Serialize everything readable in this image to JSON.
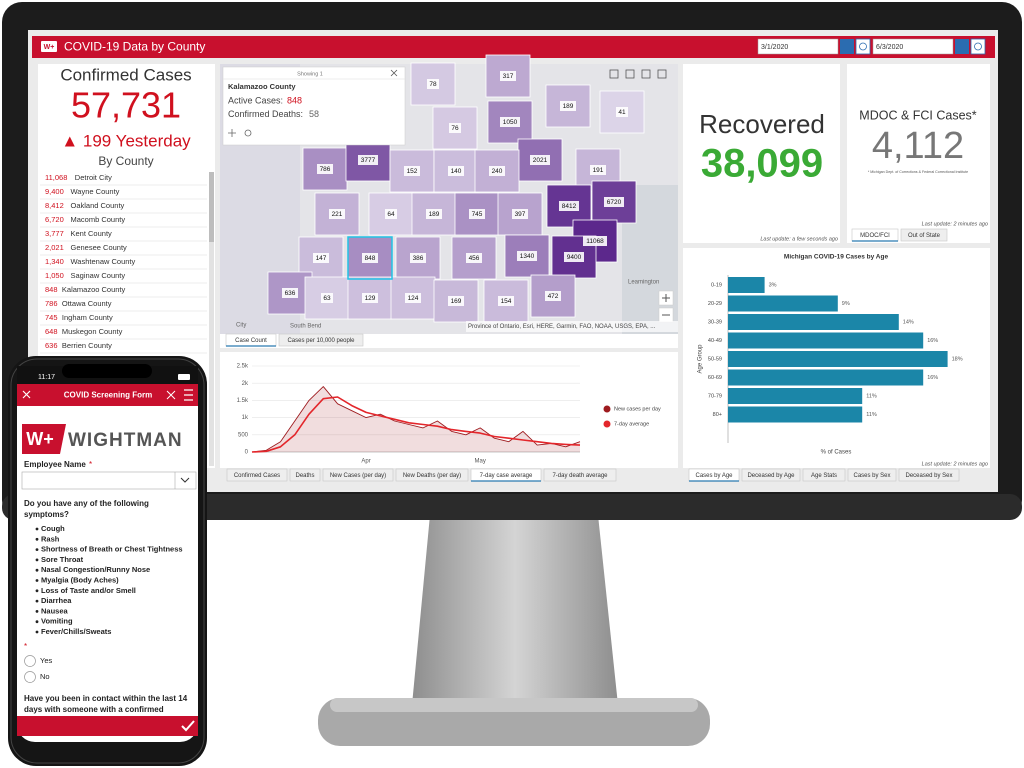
{
  "header": {
    "title": "COVID-19 Data by County",
    "start_date": "3/1/2020",
    "end_date": "6/3/2020"
  },
  "confirmed": {
    "title": "Confirmed Cases",
    "total": "57,731",
    "yesterday": "▲ 199 Yesterday",
    "subtitle": "By County",
    "counties": [
      {
        "count": "11,068",
        "name": "Detroit City"
      },
      {
        "count": "9,400",
        "name": "Wayne County"
      },
      {
        "count": "8,412",
        "name": "Oakland County"
      },
      {
        "count": "6,720",
        "name": "Macomb County"
      },
      {
        "count": "3,777",
        "name": "Kent County"
      },
      {
        "count": "2,021",
        "name": "Genesee County"
      },
      {
        "count": "1,340",
        "name": "Washtenaw County"
      },
      {
        "count": "1,050",
        "name": "Saginaw County"
      },
      {
        "count": "848",
        "name": "Kalamazoo County"
      },
      {
        "count": "786",
        "name": "Ottawa County"
      },
      {
        "count": "745",
        "name": "Ingham County"
      },
      {
        "count": "648",
        "name": "Muskegon County"
      },
      {
        "count": "636",
        "name": "Berrien County"
      }
    ]
  },
  "map": {
    "popup": {
      "showing": "Showing 1",
      "county": "Kalamazoo County",
      "active_label": "Active Cases:",
      "active": "848",
      "deaths_label": "Confirmed Deaths:",
      "deaths": "58"
    },
    "counties": [
      78,
      317,
      189,
      41,
      76,
      1050,
      2021,
      191,
      786,
      3777,
      152,
      140,
      240,
      8412,
      6720,
      221,
      64,
      189,
      745,
      397,
      11068,
      147,
      848,
      386,
      456,
      1340,
      9400,
      636,
      63,
      129,
      124,
      169,
      154,
      472
    ],
    "places": [
      "South Bend",
      "Leamington",
      "City"
    ],
    "attribution": "Province of Ontario, Esri, HERE, Garmin, FAO, NOAA, USGS, EPA, ...",
    "tabs": [
      "Case Count",
      "Cases per 10,000 people"
    ]
  },
  "recovered": {
    "title": "Recovered",
    "value": "38,099",
    "updated": "Last update: a few seconds ago"
  },
  "mdoc": {
    "title": "MDOC & FCI Cases*",
    "value": "4,112",
    "note": "* Michigan Dept. of Corrections & Federal Correctional Institute",
    "updated": "Last update: 2 minutes ago",
    "tabs": [
      "MDOC/FCI",
      "Out of State"
    ]
  },
  "trend": {
    "type": "line",
    "categories": [
      null,
      null,
      null,
      null,
      null,
      null,
      null,
      null,
      "Apr",
      null,
      null,
      null,
      null,
      null,
      null,
      null,
      "May",
      null,
      null,
      null,
      null,
      null,
      null,
      null
    ],
    "series": [
      {
        "name": "New cases per day",
        "color": "#9e1b1f",
        "values": [
          0,
          50,
          300,
          900,
          1500,
          1900,
          1400,
          1200,
          1000,
          1100,
          900,
          800,
          700,
          900,
          600,
          500,
          700,
          400,
          300,
          600,
          200,
          250,
          150,
          300
        ]
      },
      {
        "name": "7-day average",
        "color": "#e3262b",
        "values": [
          0,
          20,
          150,
          500,
          1100,
          1550,
          1600,
          1350,
          1150,
          1050,
          950,
          850,
          800,
          750,
          650,
          600,
          550,
          450,
          400,
          350,
          300,
          250,
          220,
          200
        ]
      }
    ],
    "ylim": [
      0,
      2500
    ],
    "yticks": [
      0,
      500,
      {
        "value": 1000,
        "label": "1k"
      },
      {
        "value": 1500,
        "label": "1.5k"
      },
      {
        "value": 2000,
        "label": "2k"
      },
      {
        "value": 2500,
        "label": "2.5k"
      }
    ],
    "grid": true,
    "tabs": [
      "Confirmed Cases",
      "Deaths",
      "New Cases (per day)",
      "New Deaths (per day)",
      "7-day case average",
      "7-day death average"
    ]
  },
  "age_chart": {
    "type": "bar",
    "title": "Michigan COVID-19 Cases by Age",
    "categories": [
      "0-19",
      "20-29",
      "30-39",
      "40-49",
      "50-59",
      "60-69",
      "70-79",
      "80+"
    ],
    "values": [
      3,
      9,
      14,
      16,
      18,
      16,
      11,
      11
    ],
    "value_labels": [
      "3%",
      "9%",
      "14%",
      "16%",
      "18%",
      "16%",
      "11%",
      "11%"
    ],
    "color": "#1b86a8",
    "xlim": [
      0,
      20
    ],
    "x_label": "% of Cases",
    "y_label": "Age Group",
    "updated": "Last update: 2 minutes ago",
    "tabs": [
      "Cases by Age",
      "Deceased by Age",
      "Age Stats",
      "Cases by Sex",
      "Deceased by Sex"
    ]
  },
  "phone": {
    "time": "11:17",
    "form_title": "COVID Screening Form",
    "logo_mark": "W+",
    "logo_name": "WIGHTMAN",
    "name_label": "Employee Name",
    "required": "*",
    "question_lines": [
      "Do you have any of the following",
      "symptoms?"
    ],
    "symptoms": [
      "Cough",
      "Rash",
      "Shortness of Breath or Chest Tightness",
      "Sore Throat",
      "Nasal Congestion/Runny Nose",
      "Myalgia (Body Aches)",
      "Loss of Taste and/or Smell",
      "Diarrhea",
      "Nausea",
      "Vomiting",
      "Fever/Chills/Sweats"
    ],
    "options": [
      "Yes",
      "No"
    ],
    "contact_lines": [
      "Have you been in contact within the last 14",
      "days with someone with a confirmed"
    ]
  }
}
